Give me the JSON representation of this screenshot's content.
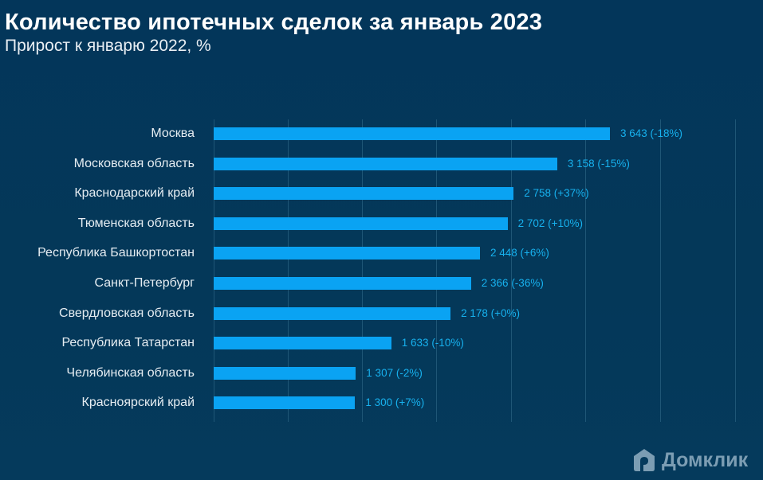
{
  "header": {
    "title": "Количество ипотечных сделок за январь 2023",
    "subtitle": "Прирост к январю 2022, %"
  },
  "brand": {
    "logo_text": "Домклик",
    "logo_icon": "house-icon"
  },
  "colors": {
    "background": "#033558",
    "bar": "#0aa3f3",
    "value_label": "#17b1ee",
    "gridline": "#1f5676"
  },
  "chart_data": {
    "type": "bar",
    "orientation": "horizontal",
    "title": "Количество ипотечных сделок за январь 2023",
    "subtitle": "Прирост к январю 2022, %",
    "xlabel": "",
    "ylabel": "",
    "grid": true,
    "legend": null,
    "categories": [
      "Москва",
      "Московская область",
      "Краснодарский край",
      "Тюменская область",
      "Республика Башкортостан",
      "Санкт-Петербург",
      "Свердловская область",
      "Республика Татарстан",
      "Челябинская область",
      "Красноярский край"
    ],
    "values": [
      3643,
      3158,
      2758,
      2702,
      2448,
      2366,
      2178,
      1633,
      1307,
      1300
    ],
    "growth_pct": [
      -18,
      -15,
      37,
      10,
      6,
      -36,
      0,
      -10,
      -2,
      7
    ],
    "data_labels": [
      "3 643 (-18%)",
      "3 158 (-15%)",
      "2 758 (+37%)",
      "2 702 (+10%)",
      "2 448 (+6%)",
      "2 366 (-36%)",
      "2 178 (+0%)",
      "1 633 (-10%)",
      "1 307 (-2%)",
      "1 300 (+7%)"
    ]
  }
}
